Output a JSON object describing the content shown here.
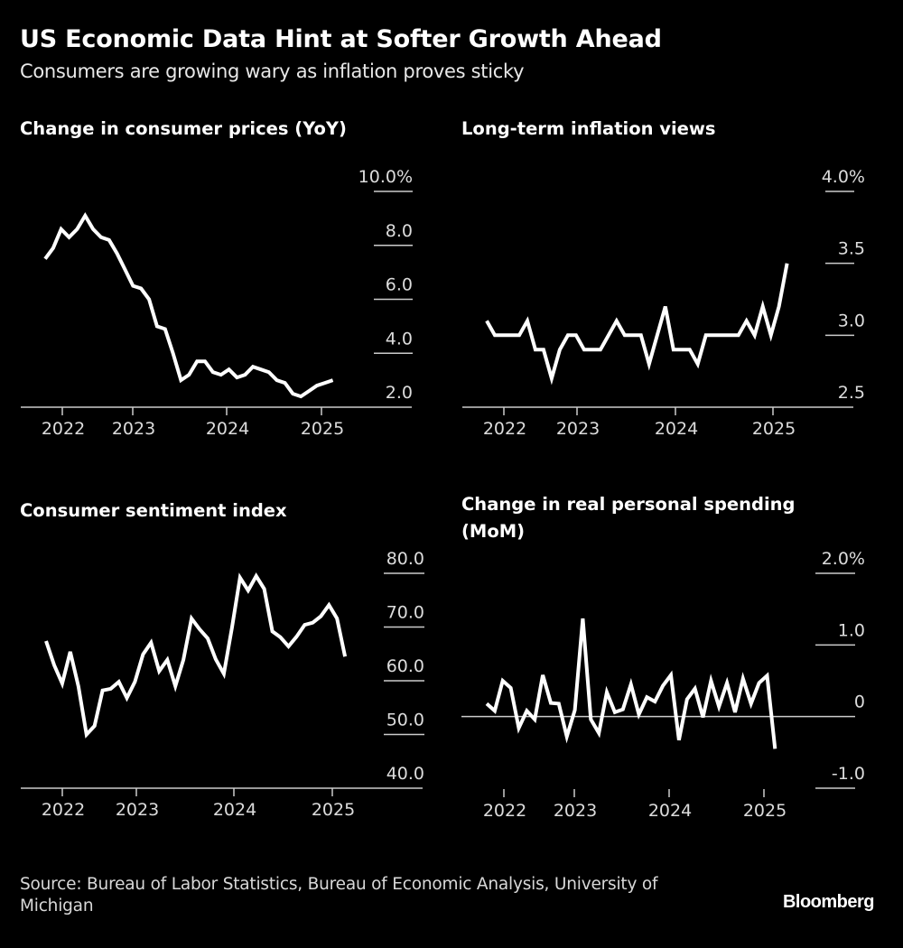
{
  "header": {
    "title": "US Economic Data Hint at Softer Growth Ahead",
    "subtitle": "Consumers are growing wary as inflation proves sticky"
  },
  "footer": {
    "source": "Source: Bureau of Labor Statistics, Bureau of Economic Analysis, University of Michigan",
    "brand": "Bloomberg"
  },
  "colors": {
    "background": "#000000",
    "line": "#ffffff",
    "grid": "#cccccc",
    "text": "#dcdcdc"
  },
  "chart_data": [
    {
      "id": "cpi",
      "type": "line",
      "title": "Change in consumer prices (YoY)",
      "xlabel": "",
      "ylabel": "",
      "unit": "%",
      "x_start": "2021-11",
      "x_frequency": "monthly",
      "x_ticks": [
        "2022",
        "2023",
        "2024",
        "2025"
      ],
      "y_ticks": [
        "10.0%",
        "8.0",
        "6.0",
        "4.0",
        "2.0"
      ],
      "y_tick_values": [
        10,
        8,
        6,
        4,
        2
      ],
      "ylim": [
        2,
        10
      ],
      "grid": true,
      "values": [
        7.5,
        7.9,
        8.6,
        8.3,
        8.6,
        9.1,
        8.6,
        8.3,
        8.2,
        7.7,
        7.1,
        6.5,
        6.4,
        6.0,
        5.0,
        4.9,
        4.0,
        3.0,
        3.2,
        3.7,
        3.7,
        3.3,
        3.2,
        3.4,
        3.1,
        3.2,
        3.5,
        3.4,
        3.3,
        3.0,
        2.9,
        2.5,
        2.4,
        2.6,
        2.8,
        2.9,
        3.0
      ]
    },
    {
      "id": "inflation-views",
      "type": "line",
      "title": "Long-term inflation views",
      "xlabel": "",
      "ylabel": "",
      "unit": "%",
      "x_start": "2021-11",
      "x_frequency": "monthly",
      "x_ticks": [
        "2022",
        "2023",
        "2024",
        "2025"
      ],
      "y_ticks": [
        "4.0%",
        "3.5",
        "3.0",
        "2.5"
      ],
      "y_tick_values": [
        4.0,
        3.5,
        3.0,
        2.5
      ],
      "ylim": [
        2.5,
        4.0
      ],
      "grid": true,
      "values": [
        3.1,
        3.0,
        3.0,
        3.0,
        3.0,
        3.1,
        2.9,
        2.9,
        2.7,
        2.9,
        3.0,
        3.0,
        2.9,
        2.9,
        2.9,
        3.0,
        3.1,
        3.0,
        3.0,
        3.0,
        2.8,
        3.0,
        3.2,
        2.9,
        2.9,
        2.9,
        2.8,
        3.0,
        3.0,
        3.0,
        3.0,
        3.0,
        3.1,
        3.0,
        3.2,
        3.0,
        3.2,
        3.5
      ]
    },
    {
      "id": "sentiment",
      "type": "line",
      "title": "Consumer sentiment index",
      "xlabel": "",
      "ylabel": "",
      "unit": "",
      "x_start": "2021-11",
      "x_frequency": "monthly",
      "x_ticks": [
        "2022",
        "2023",
        "2024",
        "2025"
      ],
      "y_ticks": [
        "80.0",
        "70.0",
        "60.0",
        "50.0",
        "40.0"
      ],
      "y_tick_values": [
        80,
        70,
        60,
        50,
        40
      ],
      "ylim": [
        40,
        80
      ],
      "grid": true,
      "values": [
        67.4,
        62.9,
        59.5,
        65.4,
        59.0,
        50.0,
        51.6,
        58.2,
        58.5,
        59.8,
        56.8,
        59.8,
        64.9,
        67.1,
        61.8,
        63.9,
        59.0,
        63.9,
        71.6,
        69.6,
        67.9,
        64.0,
        61.3,
        69.9,
        79.2,
        76.8,
        79.5,
        77.1,
        69.2,
        68.1,
        66.4,
        68.2,
        70.4,
        70.8,
        72.0,
        74.1,
        71.6,
        64.5
      ]
    },
    {
      "id": "spending",
      "type": "line",
      "title": "Change in real personal spending (MoM)",
      "xlabel": "",
      "ylabel": "",
      "unit": "%",
      "x_start": "2021-11",
      "x_frequency": "monthly",
      "x_ticks": [
        "2022",
        "2023",
        "2024",
        "2025"
      ],
      "y_ticks": [
        "2.0%",
        "1.0",
        "0",
        "-1.0"
      ],
      "y_tick_values": [
        2.0,
        1.0,
        0,
        -1.0
      ],
      "ylim": [
        -1.0,
        2.0
      ],
      "grid": true,
      "values": [
        0.18,
        0.08,
        0.5,
        0.4,
        -0.16,
        0.08,
        -0.04,
        0.58,
        0.19,
        0.18,
        -0.28,
        0.09,
        1.37,
        -0.04,
        -0.23,
        0.34,
        0.06,
        0.1,
        0.45,
        0.03,
        0.27,
        0.21,
        0.43,
        0.58,
        -0.33,
        0.24,
        0.39,
        -0.01,
        0.5,
        0.14,
        0.47,
        0.06,
        0.53,
        0.18,
        0.47,
        0.57,
        -0.45
      ]
    }
  ]
}
